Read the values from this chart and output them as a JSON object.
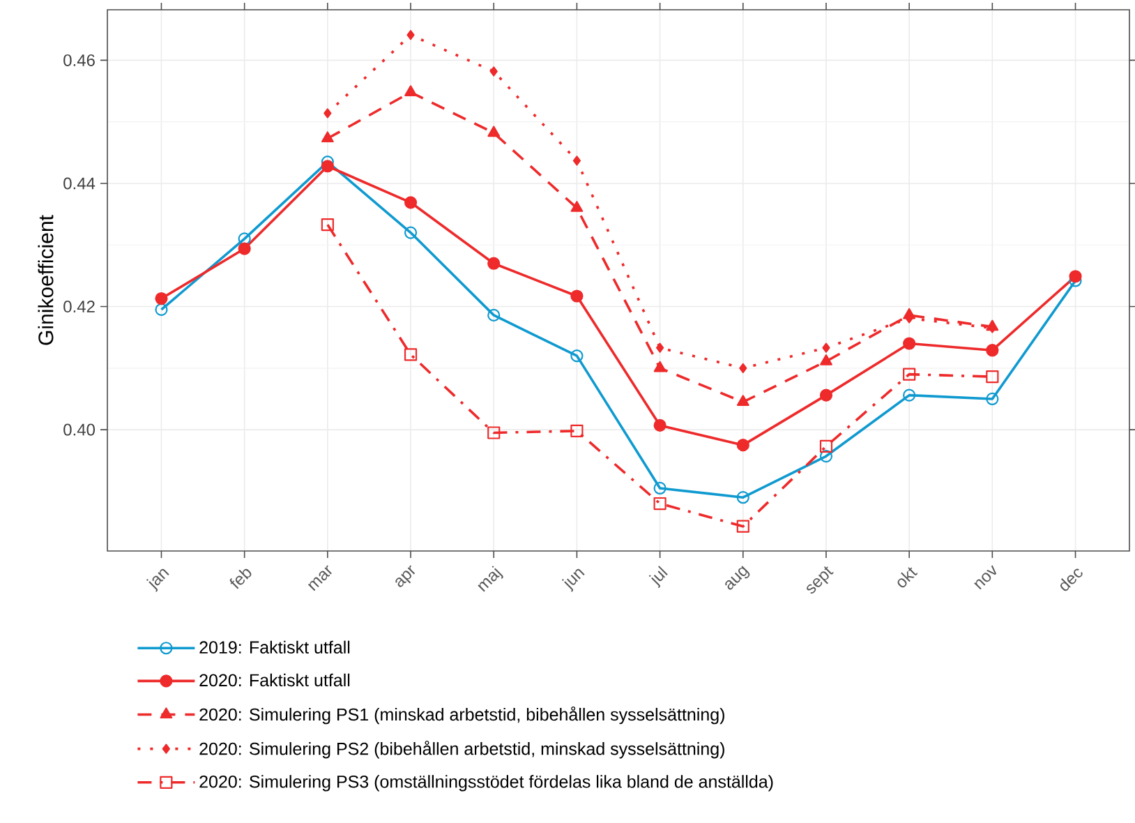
{
  "chart_data": {
    "type": "line",
    "ylabel": "Ginikoefficient",
    "categories": [
      "jan",
      "feb",
      "mar",
      "apr",
      "maj",
      "jun",
      "jul",
      "aug",
      "sept",
      "okt",
      "nov",
      "dec"
    ],
    "ylim": [
      0.3803,
      0.4682
    ],
    "yticks": [
      {
        "value": 0.4,
        "label": "0.40"
      },
      {
        "value": 0.42,
        "label": "0.42"
      },
      {
        "value": 0.44,
        "label": "0.44"
      },
      {
        "value": 0.46,
        "label": "0.46"
      }
    ],
    "grid": true,
    "legend": "bottom",
    "series": [
      {
        "name": "2019: Faktiskt utfall",
        "color": "#0f9ad0",
        "marker": "circle",
        "line_style": "solid",
        "values": [
          0.4195,
          0.431,
          0.4435,
          0.432,
          0.4186,
          0.412,
          0.3905,
          0.389,
          0.3957,
          0.4056,
          0.405,
          0.4242
        ]
      },
      {
        "name": "2020: Faktiskt utfall",
        "color": "#ee2a2b",
        "marker": "circle",
        "line_style": "solid",
        "values": [
          0.4213,
          0.4294,
          0.4428,
          0.4369,
          0.427,
          0.4217,
          0.4007,
          0.3975,
          0.4056,
          0.414,
          0.4129,
          0.4249
        ]
      },
      {
        "name": "2020: Simulering PS1 (minskad arbetstid, bibehållen sysselsättning)",
        "color": "#ee2a2b",
        "marker": "triangle",
        "line_style": "dashed",
        "values": [
          null,
          null,
          0.4473,
          0.4548,
          0.4482,
          0.436,
          0.41,
          0.4045,
          0.4111,
          0.4186,
          0.4167,
          null
        ]
      },
      {
        "name": "2020: Simulering PS2 (bibehållen arbetstid, minskad sysselsättning)",
        "color": "#ee2a2b",
        "marker": "diamond",
        "line_style": "dotted",
        "values": [
          null,
          null,
          0.4514,
          0.4641,
          0.4582,
          0.4437,
          0.4133,
          0.41,
          0.4133,
          0.4181,
          0.4165,
          null
        ]
      },
      {
        "name": "2020: Simulering PS3 (omställningsstödet fördelas lika bland de anställda)",
        "color": "#ee2a2b",
        "marker": "square",
        "line_style": "dashdot",
        "values": [
          null,
          null,
          0.4333,
          0.4122,
          0.3995,
          0.3998,
          0.388,
          0.3843,
          0.3973,
          0.409,
          0.4086,
          null
        ]
      }
    ]
  }
}
